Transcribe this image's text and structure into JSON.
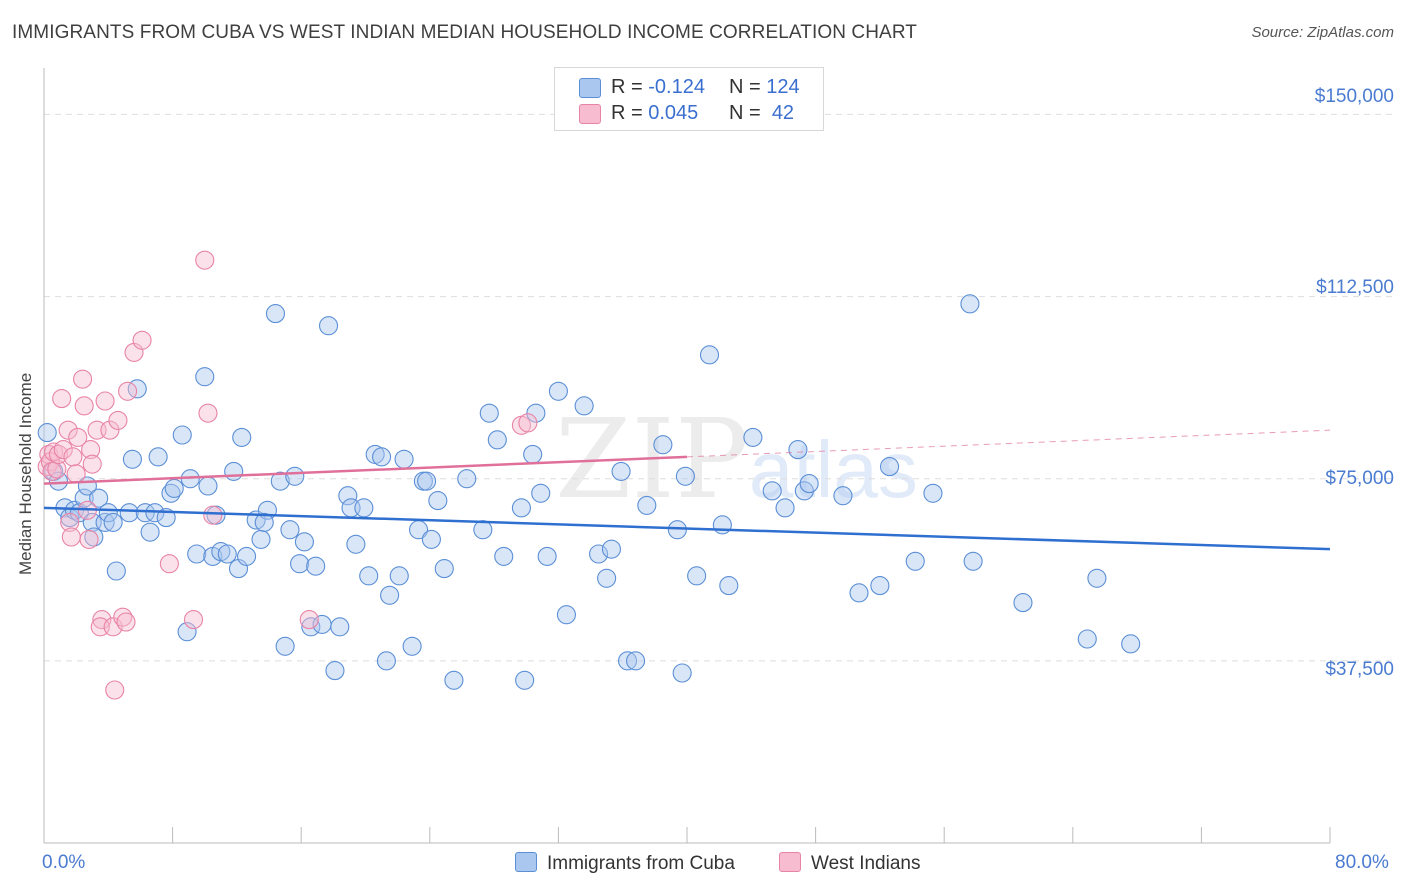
{
  "title": "IMMIGRANTS FROM CUBA VS WEST INDIAN MEDIAN HOUSEHOLD INCOME CORRELATION CHART",
  "source": "Source: ZipAtlas.com",
  "watermark": {
    "zip": "ZIP",
    "atlas": "atlas"
  },
  "legend_box": {
    "rows": [
      {
        "r_label": "R =",
        "r_value": "-0.124",
        "n_label": "N =",
        "n_value": "124"
      },
      {
        "r_label": "R =",
        "r_value": "0.045",
        "n_label": "N =",
        "n_value": "42"
      }
    ]
  },
  "bottom_legend": [
    "Immigrants from Cuba",
    "West Indians"
  ],
  "colors": {
    "blue_fill": "#aac8ef",
    "blue_stroke": "#5b8fd6",
    "blue_line": "#2f6fd0",
    "pink_fill": "#f7bcd0",
    "pink_stroke": "#e883a6",
    "pink_line": "#e0709a",
    "tick_text": "#4a7bd0",
    "grid": "#dddddd"
  },
  "chart_data": {
    "type": "scatter",
    "title": "IMMIGRANTS FROM CUBA VS WEST INDIAN MEDIAN HOUSEHOLD INCOME CORRELATION CHART",
    "xlabel": "",
    "ylabel": "Median Household Income",
    "xlim": [
      0,
      80
    ],
    "ylim": [
      0,
      157500
    ],
    "x_tick_labels": [
      "0.0%",
      "80.0%"
    ],
    "y_ticks": [
      37500,
      75000,
      112500,
      150000
    ],
    "y_tick_labels": [
      "$37,500",
      "$75,000",
      "$112,500",
      "$150,000"
    ],
    "grid": true,
    "legend_placement": "bottom",
    "series": [
      {
        "name": "Immigrants from Cuba",
        "r": -0.124,
        "n": 124,
        "trend": {
          "x": [
            0,
            80
          ],
          "y": [
            69000,
            60500
          ],
          "dashed_from": null
        },
        "points": [
          [
            0.2,
            84500
          ],
          [
            0.6,
            76500
          ],
          [
            0.9,
            74500
          ],
          [
            1.3,
            69000
          ],
          [
            1.6,
            67000
          ],
          [
            1.9,
            68500
          ],
          [
            2.2,
            68000
          ],
          [
            2.5,
            71000
          ],
          [
            2.7,
            73500
          ],
          [
            3.0,
            66000
          ],
          [
            3.1,
            63000
          ],
          [
            3.4,
            71000
          ],
          [
            3.8,
            66000
          ],
          [
            4.0,
            68000
          ],
          [
            4.3,
            66000
          ],
          [
            4.5,
            56000
          ],
          [
            5.3,
            68000
          ],
          [
            5.5,
            79000
          ],
          [
            5.8,
            93500
          ],
          [
            6.3,
            68000
          ],
          [
            6.6,
            64000
          ],
          [
            6.9,
            68000
          ],
          [
            7.1,
            79500
          ],
          [
            7.6,
            67000
          ],
          [
            7.9,
            72000
          ],
          [
            8.1,
            73000
          ],
          [
            8.6,
            84000
          ],
          [
            8.9,
            43500
          ],
          [
            9.1,
            75000
          ],
          [
            9.5,
            59500
          ],
          [
            10.0,
            96000
          ],
          [
            10.2,
            73500
          ],
          [
            10.5,
            59000
          ],
          [
            10.7,
            67500
          ],
          [
            11.0,
            60000
          ],
          [
            11.4,
            59500
          ],
          [
            11.8,
            76500
          ],
          [
            12.1,
            56500
          ],
          [
            12.3,
            83500
          ],
          [
            12.6,
            59000
          ],
          [
            13.2,
            66500
          ],
          [
            13.5,
            62500
          ],
          [
            13.9,
            68500
          ],
          [
            13.7,
            66000
          ],
          [
            14.4,
            109000
          ],
          [
            14.7,
            74500
          ],
          [
            15.0,
            40500
          ],
          [
            15.3,
            64500
          ],
          [
            15.6,
            75500
          ],
          [
            15.9,
            57500
          ],
          [
            16.2,
            62000
          ],
          [
            16.6,
            44500
          ],
          [
            16.9,
            57000
          ],
          [
            17.3,
            45000
          ],
          [
            17.7,
            106500
          ],
          [
            18.1,
            35500
          ],
          [
            18.4,
            44500
          ],
          [
            18.9,
            71500
          ],
          [
            19.1,
            69000
          ],
          [
            19.4,
            61500
          ],
          [
            19.9,
            69000
          ],
          [
            20.2,
            55000
          ],
          [
            20.6,
            80000
          ],
          [
            21.0,
            79500
          ],
          [
            21.3,
            37500
          ],
          [
            21.5,
            51000
          ],
          [
            22.1,
            55000
          ],
          [
            22.4,
            79000
          ],
          [
            22.9,
            40500
          ],
          [
            23.3,
            64500
          ],
          [
            23.6,
            74500
          ],
          [
            23.8,
            74500
          ],
          [
            24.1,
            62500
          ],
          [
            24.5,
            70500
          ],
          [
            24.9,
            56500
          ],
          [
            25.5,
            33500
          ],
          [
            26.3,
            75000
          ],
          [
            27.3,
            64500
          ],
          [
            27.7,
            88500
          ],
          [
            28.2,
            83000
          ],
          [
            28.6,
            59000
          ],
          [
            29.9,
            33500
          ],
          [
            29.7,
            69000
          ],
          [
            30.4,
            80000
          ],
          [
            30.6,
            88500
          ],
          [
            30.9,
            72000
          ],
          [
            31.3,
            59000
          ],
          [
            32.0,
            93000
          ],
          [
            32.5,
            47000
          ],
          [
            33.6,
            90000
          ],
          [
            34.5,
            59500
          ],
          [
            35.0,
            54500
          ],
          [
            35.3,
            60500
          ],
          [
            35.9,
            76500
          ],
          [
            36.3,
            37500
          ],
          [
            36.8,
            37500
          ],
          [
            37.5,
            69500
          ],
          [
            38.5,
            82000
          ],
          [
            39.4,
            64500
          ],
          [
            39.7,
            35000
          ],
          [
            39.9,
            75500
          ],
          [
            40.6,
            55000
          ],
          [
            41.4,
            100500
          ],
          [
            42.2,
            65500
          ],
          [
            42.6,
            53000
          ],
          [
            44.1,
            83500
          ],
          [
            45.3,
            72500
          ],
          [
            46.1,
            69000
          ],
          [
            46.9,
            81000
          ],
          [
            47.3,
            72500
          ],
          [
            47.6,
            74000
          ],
          [
            49.7,
            71500
          ],
          [
            50.7,
            51500
          ],
          [
            52.0,
            53000
          ],
          [
            52.6,
            77500
          ],
          [
            54.2,
            58000
          ],
          [
            55.3,
            72000
          ],
          [
            57.6,
            111000
          ],
          [
            57.8,
            58000
          ],
          [
            60.9,
            49500
          ],
          [
            64.9,
            42000
          ],
          [
            65.5,
            54500
          ],
          [
            67.6,
            41000
          ]
        ]
      },
      {
        "name": "West Indians",
        "r": 0.045,
        "n": 42,
        "trend": {
          "x": [
            0,
            80
          ],
          "y": [
            74000,
            85000
          ],
          "dashed_from": 40
        },
        "points": [
          [
            0.2,
            77500
          ],
          [
            0.3,
            80000
          ],
          [
            0.4,
            78500
          ],
          [
            0.5,
            76500
          ],
          [
            0.6,
            80500
          ],
          [
            0.8,
            77000
          ],
          [
            0.9,
            80000
          ],
          [
            1.1,
            91500
          ],
          [
            1.2,
            81000
          ],
          [
            1.5,
            85000
          ],
          [
            1.6,
            66000
          ],
          [
            1.7,
            63000
          ],
          [
            1.8,
            79500
          ],
          [
            2.0,
            76000
          ],
          [
            2.1,
            83500
          ],
          [
            2.4,
            95500
          ],
          [
            2.5,
            90000
          ],
          [
            2.7,
            68500
          ],
          [
            2.8,
            62500
          ],
          [
            2.9,
            81000
          ],
          [
            3.0,
            78000
          ],
          [
            3.3,
            85000
          ],
          [
            3.6,
            46000
          ],
          [
            3.5,
            44500
          ],
          [
            3.8,
            91000
          ],
          [
            4.1,
            85000
          ],
          [
            4.3,
            44500
          ],
          [
            4.4,
            31500
          ],
          [
            4.6,
            87000
          ],
          [
            4.9,
            46500
          ],
          [
            5.1,
            45500
          ],
          [
            5.2,
            93000
          ],
          [
            5.6,
            101000
          ],
          [
            6.1,
            103500
          ],
          [
            7.8,
            57500
          ],
          [
            9.3,
            46000
          ],
          [
            10.0,
            120000
          ],
          [
            10.2,
            88500
          ],
          [
            10.5,
            67500
          ],
          [
            16.5,
            46000
          ],
          [
            29.7,
            86000
          ],
          [
            30.1,
            86500
          ]
        ]
      }
    ]
  }
}
